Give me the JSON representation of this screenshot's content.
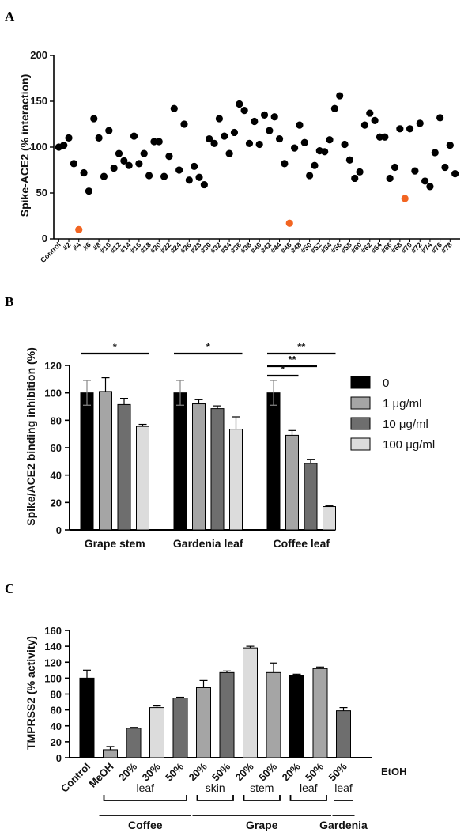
{
  "chart_data": [
    {
      "panel": "A",
      "type": "scatter",
      "ylabel": "Spike-ACE2 (% interaction)",
      "ylim": [
        0,
        200
      ],
      "yticks": [
        0,
        50,
        100,
        150,
        200
      ],
      "xtick_labels": [
        "Control",
        "#2",
        "#4",
        "#6",
        "#8",
        "#10",
        "#12",
        "#14",
        "#16",
        "#18",
        "#20",
        "#22",
        "#24",
        "#26",
        "#28",
        "#30",
        "#32",
        "#34",
        "#36",
        "#38",
        "#40",
        "#42",
        "#44",
        "#46",
        "#48",
        "#50",
        "#52",
        "#54",
        "#56",
        "#58",
        "#60",
        "#62",
        "#64",
        "#66",
        "#68",
        "#70",
        "#72",
        "#74",
        "#76",
        "#78"
      ],
      "highlight_color": "#f26522",
      "point_color": "#000000",
      "points": [
        {
          "x": 0,
          "y": 100
        },
        {
          "x": 0.5,
          "y": 102
        },
        {
          "x": 1,
          "y": 110
        },
        {
          "x": 1.5,
          "y": 82
        },
        {
          "x": 2,
          "y": 10,
          "highlight": true
        },
        {
          "x": 2.5,
          "y": 72
        },
        {
          "x": 3,
          "y": 52
        },
        {
          "x": 3.5,
          "y": 131
        },
        {
          "x": 4,
          "y": 110
        },
        {
          "x": 4.5,
          "y": 68
        },
        {
          "x": 5,
          "y": 118
        },
        {
          "x": 5.5,
          "y": 77
        },
        {
          "x": 6,
          "y": 93
        },
        {
          "x": 6.5,
          "y": 85
        },
        {
          "x": 7,
          "y": 80
        },
        {
          "x": 7.5,
          "y": 112
        },
        {
          "x": 8,
          "y": 82
        },
        {
          "x": 8.5,
          "y": 93
        },
        {
          "x": 9,
          "y": 69
        },
        {
          "x": 9.5,
          "y": 106
        },
        {
          "x": 10,
          "y": 106
        },
        {
          "x": 10.5,
          "y": 68
        },
        {
          "x": 11,
          "y": 90
        },
        {
          "x": 11.5,
          "y": 142
        },
        {
          "x": 12,
          "y": 75
        },
        {
          "x": 12.5,
          "y": 125
        },
        {
          "x": 13,
          "y": 64
        },
        {
          "x": 13.5,
          "y": 79
        },
        {
          "x": 14,
          "y": 67
        },
        {
          "x": 14.5,
          "y": 59
        },
        {
          "x": 15,
          "y": 109
        },
        {
          "x": 15.5,
          "y": 104
        },
        {
          "x": 16,
          "y": 131
        },
        {
          "x": 16.5,
          "y": 112
        },
        {
          "x": 17,
          "y": 93
        },
        {
          "x": 17.5,
          "y": 116
        },
        {
          "x": 18,
          "y": 147
        },
        {
          "x": 18.5,
          "y": 140
        },
        {
          "x": 19,
          "y": 104
        },
        {
          "x": 19.5,
          "y": 128
        },
        {
          "x": 20,
          "y": 103
        },
        {
          "x": 20.5,
          "y": 135
        },
        {
          "x": 21,
          "y": 118
        },
        {
          "x": 21.5,
          "y": 133
        },
        {
          "x": 22,
          "y": 109
        },
        {
          "x": 22.5,
          "y": 82
        },
        {
          "x": 23,
          "y": 17,
          "highlight": true
        },
        {
          "x": 23.5,
          "y": 99
        },
        {
          "x": 24,
          "y": 124
        },
        {
          "x": 24.5,
          "y": 105
        },
        {
          "x": 25,
          "y": 69
        },
        {
          "x": 25.5,
          "y": 80
        },
        {
          "x": 26,
          "y": 96
        },
        {
          "x": 26.5,
          "y": 95
        },
        {
          "x": 27,
          "y": 108
        },
        {
          "x": 27.5,
          "y": 142
        },
        {
          "x": 28,
          "y": 156
        },
        {
          "x": 28.5,
          "y": 103
        },
        {
          "x": 29,
          "y": 86
        },
        {
          "x": 29.5,
          "y": 66
        },
        {
          "x": 30,
          "y": 73
        },
        {
          "x": 30.5,
          "y": 124
        },
        {
          "x": 31,
          "y": 137
        },
        {
          "x": 31.5,
          "y": 129
        },
        {
          "x": 32,
          "y": 111
        },
        {
          "x": 32.5,
          "y": 111
        },
        {
          "x": 33,
          "y": 66
        },
        {
          "x": 33.5,
          "y": 78
        },
        {
          "x": 34,
          "y": 120
        },
        {
          "x": 34.5,
          "y": 44,
          "highlight": true
        },
        {
          "x": 35,
          "y": 120
        },
        {
          "x": 35.5,
          "y": 74
        },
        {
          "x": 36,
          "y": 126
        },
        {
          "x": 36.5,
          "y": 63
        },
        {
          "x": 37,
          "y": 57
        },
        {
          "x": 37.5,
          "y": 94
        },
        {
          "x": 38,
          "y": 132
        },
        {
          "x": 38.5,
          "y": 78
        },
        {
          "x": 39,
          "y": 102
        },
        {
          "x": 39.5,
          "y": 71
        }
      ]
    },
    {
      "panel": "B",
      "type": "bar",
      "ylabel": "Spike/ACE2 binding inhibition (%)",
      "ylim": [
        0,
        120
      ],
      "yticks": [
        0,
        20,
        40,
        60,
        80,
        100,
        120
      ],
      "categories": [
        "Grape stem",
        "Gardenia leaf",
        "Coffee leaf"
      ],
      "series": [
        {
          "name": "0",
          "color": "#000000",
          "values": [
            100,
            100,
            100
          ],
          "errors": [
            9,
            9,
            9
          ]
        },
        {
          "name": "1 μg/ml",
          "color": "#a5a5a5",
          "values": [
            101,
            92,
            69
          ],
          "errors": [
            10,
            3,
            3.5
          ]
        },
        {
          "name": "10 μg/ml",
          "color": "#6e6e6e",
          "values": [
            91.5,
            88.5,
            48.5
          ],
          "errors": [
            4.5,
            2,
            3
          ]
        },
        {
          "name": "100 μg/ml",
          "color": "#dcdcdc",
          "values": [
            75.5,
            73.5,
            17
          ],
          "errors": [
            1.5,
            9,
            0.5
          ]
        }
      ],
      "significance": [
        {
          "label": "*",
          "category": 0,
          "from_series": 0,
          "to_series": 3,
          "level": 0
        },
        {
          "label": "*",
          "category": 1,
          "from_series": 0,
          "to_series": 3,
          "level": 0
        },
        {
          "label": "**",
          "category": 2,
          "from_series": 0,
          "to_series": 3,
          "level": 0
        },
        {
          "label": "**",
          "category": 2,
          "from_series": 0,
          "to_series": 2,
          "level": 1
        },
        {
          "label": "*",
          "category": 2,
          "from_series": 0,
          "to_series": 1,
          "level": 2
        }
      ],
      "legend_position": "right"
    },
    {
      "panel": "C",
      "type": "bar",
      "ylabel": "TMPRSS2 (% activity)",
      "ylim": [
        0,
        160
      ],
      "yticks": [
        0,
        20,
        40,
        60,
        80,
        100,
        120,
        140,
        160
      ],
      "categories": [
        "Control",
        "MeOH",
        "20%",
        "30%",
        "50%",
        "20%",
        "50%",
        "20%",
        "50%",
        "20%",
        "50%",
        "50%"
      ],
      "values": [
        100,
        10,
        37,
        63,
        75,
        88,
        107,
        138,
        107,
        103,
        112,
        59
      ],
      "errors": [
        10,
        4,
        1,
        2,
        1,
        9,
        2,
        2,
        12,
        2,
        2,
        4
      ],
      "colors": [
        "#000000",
        "#a5a5a5",
        "#6e6e6e",
        "#dcdcdc",
        "#6e6e6e",
        "#a5a5a5",
        "#6e6e6e",
        "#dcdcdc",
        "#a5a5a5",
        "#000000",
        "#a5a5a5",
        "#6e6e6e"
      ],
      "solvent_label": "EtOH",
      "subgroups": [
        {
          "label": "leaf",
          "from": 1,
          "to": 4
        },
        {
          "label": "skin",
          "from": 5,
          "to": 6
        },
        {
          "label": "stem",
          "from": 7,
          "to": 8
        },
        {
          "label": "leaf",
          "from": 9,
          "to": 10
        },
        {
          "label": "leaf",
          "from": 11,
          "to": 11
        }
      ],
      "groups": [
        {
          "label": "Coffee",
          "from": 1,
          "to": 4
        },
        {
          "label": "Grape",
          "from": 5,
          "to": 10
        },
        {
          "label": "Gardenia",
          "from": 11,
          "to": 11
        }
      ]
    }
  ]
}
